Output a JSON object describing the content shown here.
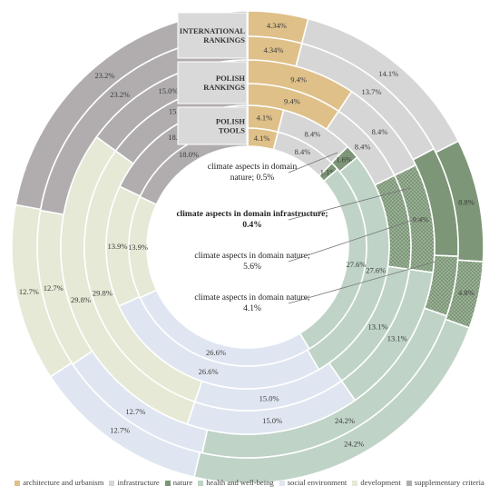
{
  "chart_data": {
    "type": "multi-ring donut",
    "rings": [
      {
        "label": "INTERNATIONAL\nRANKINGS",
        "values": [
          4.34,
          14.1,
          8.8,
          4.8,
          24.2,
          12.7,
          12.7,
          23.2
        ],
        "labels": [
          "4.34%",
          "14.1%",
          "8.8%",
          "4.8%",
          "24.2%",
          "12.7%",
          "12.7%",
          "23.2%"
        ]
      },
      {
        "label": "",
        "values": [
          4.34,
          13.7,
          8.8,
          4.8,
          24.2,
          12.7,
          12.7,
          23.2
        ],
        "labels": [
          "4.34%",
          "13.7%",
          "",
          "",
          "24.2%",
          "12.7%",
          "12.7%",
          "23.2%"
        ]
      },
      {
        "label": "POLISH\nRANKINGS",
        "values": [
          9.4,
          8.4,
          9.4,
          13.1,
          15.0,
          29.8,
          15.0
        ],
        "labels": [
          "9.4%",
          "8.4%",
          "9.4%",
          "13.1%",
          "15.0%",
          "29.8%",
          "15.0%"
        ]
      },
      {
        "label": "",
        "values": [
          9.4,
          8.4,
          9.4,
          13.1,
          15.0,
          29.8,
          15.0
        ],
        "labels": [
          "9.4%",
          "8.4%",
          "",
          "13.1%",
          "15.0%",
          "29.8%",
          "15.0%"
        ]
      },
      {
        "label": "POLISH\nTOOLS",
        "values": [
          4.1,
          8.4,
          1.6,
          27.6,
          26.6,
          13.9,
          18.0
        ],
        "labels": [
          "4.1%",
          "8.4%",
          "1.6%",
          "27.6%",
          "26.6%",
          "13.9%",
          "18.0%"
        ]
      },
      {
        "label": "",
        "values": [
          4.1,
          8.4,
          1.1,
          27.6,
          26.6,
          13.9,
          18.0
        ],
        "labels": [
          "4.1%",
          "8.4%",
          "1.1%",
          "27.6%",
          "26.6%",
          "13.9%",
          "18.0%"
        ]
      }
    ],
    "annotations": [
      {
        "text": "climate aspects in domain\nnature; 0.5%",
        "bold": false
      },
      {
        "text": "climate aspects in domain infrastructure;\n0.4%",
        "bold": true
      },
      {
        "text": "climate aspects in domain nature;\n5.6%",
        "bold": false
      },
      {
        "text": "climate aspects in domain nature;\n4.1%",
        "bold": false
      }
    ],
    "legend": [
      {
        "name": "architecture and urbanism",
        "color": "#dfc089"
      },
      {
        "name": "infrastructure",
        "color": "#d6d6d6"
      },
      {
        "name": "nature",
        "color": "#7c9677"
      },
      {
        "name": "health and well-being",
        "color": "#bfd3c7"
      },
      {
        "name": "social environment",
        "color": "#dfe6f1"
      },
      {
        "name": "development",
        "color": "#e5e9d5"
      },
      {
        "name": "supplementary criteria",
        "color": "#b1adae"
      }
    ],
    "legend_placement": "bottom"
  }
}
